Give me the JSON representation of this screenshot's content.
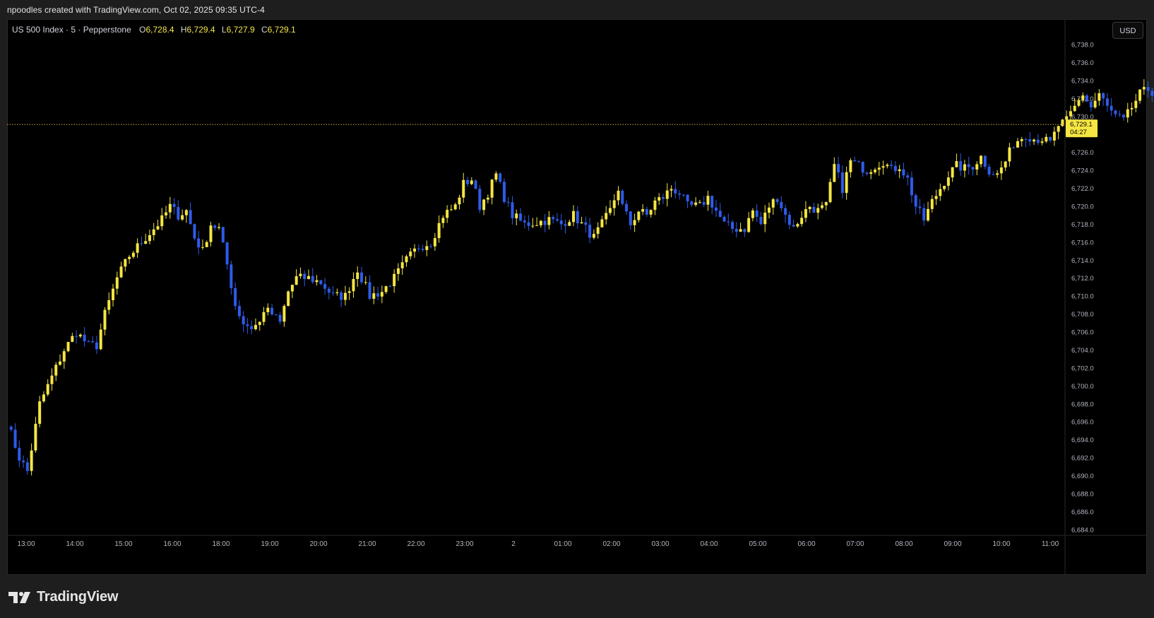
{
  "caption": "npoodles created with TradingView.com, Oct 02, 2025 09:35 UTC-4",
  "legend": {
    "symbol": "US 500 Index · 5 · Pepperstone",
    "open_label": "O",
    "open": "6,728.4",
    "high_label": "H",
    "high": "6,729.4",
    "low_label": "L",
    "low": "6,727.9",
    "close_label": "C",
    "close": "6,729.1"
  },
  "currency_button": "USD",
  "price_tag": {
    "price": "6,729.1",
    "countdown": "04:27"
  },
  "brand": "TradingView",
  "colors": {
    "up": "#f5e642",
    "down": "#2f5bea",
    "background": "#000000",
    "last_price_line": "#d4a836"
  },
  "chart_data": {
    "type": "candlestick",
    "ylim": [
      6683,
      6741
    ],
    "last_price": 6729.1,
    "y_ticks": [
      6738,
      6736,
      6734,
      6732,
      6730,
      6728,
      6726,
      6724,
      6722,
      6720,
      6718,
      6716,
      6714,
      6712,
      6710,
      6708,
      6706,
      6704,
      6702,
      6700,
      6698,
      6696,
      6694,
      6692,
      6690,
      6688,
      6686,
      6684
    ],
    "y_tick_labels": [
      "6,738.0",
      "6,736.0",
      "6,734.0",
      "6,732.0",
      "6,730.0",
      "6,728.0",
      "6,726.0",
      "6,724.0",
      "6,722.0",
      "6,720.0",
      "6,718.0",
      "6,716.0",
      "6,714.0",
      "6,712.0",
      "6,710.0",
      "6,708.0",
      "6,706.0",
      "6,704.0",
      "6,702.0",
      "6,700.0",
      "6,698.0",
      "6,696.0",
      "6,694.0",
      "6,692.0",
      "6,690.0",
      "6,688.0",
      "6,686.0",
      "6,684.0"
    ],
    "x_ticks": [
      "13:00",
      "14:00",
      "15:00",
      "16:00",
      "18:00",
      "19:00",
      "20:00",
      "21:00",
      "22:00",
      "23:00",
      "2",
      "01:00",
      "02:00",
      "03:00",
      "04:00",
      "05:00",
      "06:00",
      "07:00",
      "08:00",
      "09:00",
      "10:00",
      "11:00"
    ],
    "candles_per_hour": 12,
    "x_start": "12:40",
    "anchors": [
      [
        0,
        6696
      ],
      [
        3,
        6692
      ],
      [
        5,
        6690.5
      ],
      [
        8,
        6698
      ],
      [
        11,
        6701
      ],
      [
        14,
        6704
      ],
      [
        17,
        6706
      ],
      [
        20,
        6704.5
      ],
      [
        22,
        6704.5
      ],
      [
        24,
        6708
      ],
      [
        27,
        6712
      ],
      [
        30,
        6714.5
      ],
      [
        34,
        6716.5
      ],
      [
        38,
        6718.5
      ],
      [
        40,
        6720
      ],
      [
        42,
        6719
      ],
      [
        44,
        6719.5
      ],
      [
        46,
        6716.5
      ],
      [
        48,
        6715
      ],
      [
        50,
        6718
      ],
      [
        52,
        6717.5
      ],
      [
        54,
        6713.5
      ],
      [
        56,
        6709
      ],
      [
        58,
        6707
      ],
      [
        60,
        6706.5
      ],
      [
        62,
        6707
      ],
      [
        63,
        6708.5
      ],
      [
        65,
        6708
      ],
      [
        67,
        6707
      ],
      [
        69,
        6710.5
      ],
      [
        71,
        6712
      ],
      [
        74,
        6712
      ],
      [
        77,
        6711.5
      ],
      [
        80,
        6710
      ],
      [
        83,
        6710
      ],
      [
        86,
        6713
      ],
      [
        89,
        6710
      ],
      [
        92,
        6710.5
      ],
      [
        95,
        6712
      ],
      [
        98,
        6714
      ],
      [
        101,
        6715.5
      ],
      [
        104,
        6716
      ],
      [
        107,
        6719
      ],
      [
        110,
        6720
      ],
      [
        112,
        6722.5
      ],
      [
        114,
        6723
      ],
      [
        116,
        6720
      ],
      [
        118,
        6721.5
      ],
      [
        120,
        6723.5
      ],
      [
        122,
        6721
      ],
      [
        124,
        6719
      ],
      [
        127,
        6718
      ],
      [
        130,
        6718.2
      ],
      [
        133,
        6718.5
      ],
      [
        136,
        6718
      ],
      [
        139,
        6719
      ],
      [
        142,
        6717.5
      ],
      [
        144,
        6716.5
      ],
      [
        146,
        6718
      ],
      [
        148,
        6719.5
      ],
      [
        150,
        6722
      ],
      [
        151,
        6720
      ],
      [
        153,
        6718
      ],
      [
        155,
        6719.5
      ],
      [
        157,
        6719
      ],
      [
        159,
        6720.5
      ],
      [
        161,
        6721
      ],
      [
        163,
        6722
      ],
      [
        165,
        6721.5
      ],
      [
        167,
        6720
      ],
      [
        170,
        6720
      ],
      [
        172,
        6721
      ],
      [
        174,
        6719.5
      ],
      [
        176,
        6718
      ],
      [
        178,
        6717.5
      ],
      [
        181,
        6717.5
      ],
      [
        183,
        6719.5
      ],
      [
        185,
        6718
      ],
      [
        187,
        6720
      ],
      [
        189,
        6721
      ],
      [
        191,
        6719
      ],
      [
        193,
        6717.5
      ],
      [
        195,
        6719
      ],
      [
        197,
        6720
      ],
      [
        199,
        6719.5
      ],
      [
        201,
        6720
      ],
      [
        203,
        6724.5
      ],
      [
        205,
        6722
      ],
      [
        207,
        6725
      ],
      [
        209,
        6724.5
      ],
      [
        211,
        6724
      ],
      [
        213,
        6724.5
      ],
      [
        215,
        6725
      ],
      [
        217,
        6724
      ],
      [
        219,
        6724.5
      ],
      [
        221,
        6723
      ],
      [
        223,
        6720
      ],
      [
        225,
        6718.5
      ],
      [
        227,
        6720.5
      ],
      [
        229,
        6722
      ],
      [
        231,
        6723.5
      ],
      [
        233,
        6724.5
      ],
      [
        235,
        6724.2
      ],
      [
        237,
        6724.5
      ],
      [
        239,
        6725.5
      ],
      [
        241,
        6724
      ],
      [
        243,
        6723.5
      ],
      [
        245,
        6725
      ],
      [
        247,
        6727
      ],
      [
        250,
        6728
      ],
      [
        252,
        6727.5
      ],
      [
        254,
        6727.5
      ],
      [
        256,
        6727
      ],
      [
        258,
        6729
      ],
      [
        260,
        6729.5
      ],
      [
        262,
        6731
      ],
      [
        264,
        6732.5
      ],
      [
        266,
        6731
      ],
      [
        268,
        6732.5
      ],
      [
        270,
        6731
      ],
      [
        272,
        6730
      ],
      [
        274,
        6729.5
      ],
      [
        276,
        6731
      ],
      [
        278,
        6732.5
      ],
      [
        280,
        6733
      ],
      [
        282,
        6732.5
      ],
      [
        284,
        6731.5
      ],
      [
        286,
        6730
      ],
      [
        287,
        6728.5
      ],
      [
        288,
        6729.1
      ]
    ]
  }
}
